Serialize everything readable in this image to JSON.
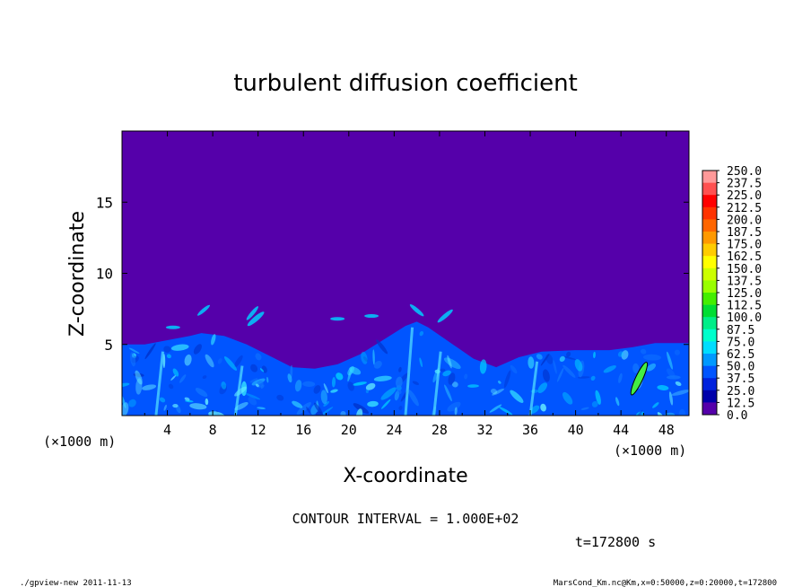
{
  "chart_data": {
    "type": "heatmap",
    "title": "turbulent diffusion coefficient",
    "xlabel": "X-coordinate",
    "ylabel": "Z-coordinate",
    "x_unit": "(×1000 m)",
    "z_unit": "(×1000 m)",
    "xlim": [
      0,
      50
    ],
    "ylim": [
      0,
      20
    ],
    "x_ticks": [
      "4",
      "8",
      "12",
      "16",
      "20",
      "24",
      "28",
      "32",
      "36",
      "40",
      "44",
      "48"
    ],
    "y_ticks": [
      "5",
      "10",
      "15"
    ],
    "colorbar": {
      "levels": [
        "250.0",
        "237.5",
        "225.0",
        "212.5",
        "200.0",
        "187.5",
        "175.0",
        "162.5",
        "150.0",
        "137.5",
        "125.0",
        "112.5",
        "100.0",
        "87.5",
        "75.0",
        "62.5",
        "50.0",
        "37.5",
        "25.0",
        "12.5",
        "0.0"
      ],
      "colors": [
        "#ff9999",
        "#ff5050",
        "#ff0000",
        "#ff3300",
        "#ff6600",
        "#ff9900",
        "#ffcc00",
        "#ffff00",
        "#ccff00",
        "#99ff00",
        "#44ee00",
        "#00dd33",
        "#00ee88",
        "#00ffcc",
        "#00ddff",
        "#0099ff",
        "#0055ff",
        "#0022dd",
        "#0000aa",
        "#5500aa"
      ]
    },
    "contour_interval": "CONTOUR INTERVAL = 1.000E+02",
    "time": "t=172800 s",
    "boundary_layer_top_km": [
      [
        0,
        5.0
      ],
      [
        2,
        5.0
      ],
      [
        4,
        5.3
      ],
      [
        6,
        5.6
      ],
      [
        7,
        5.8
      ],
      [
        9,
        5.6
      ],
      [
        11,
        5.0
      ],
      [
        13,
        4.2
      ],
      [
        15,
        3.4
      ],
      [
        17,
        3.3
      ],
      [
        19,
        3.6
      ],
      [
        21,
        4.3
      ],
      [
        23,
        5.3
      ],
      [
        25,
        6.3
      ],
      [
        26,
        6.6
      ],
      [
        27,
        6.2
      ],
      [
        29,
        5.1
      ],
      [
        31,
        4.0
      ],
      [
        33,
        3.4
      ],
      [
        35,
        4.1
      ],
      [
        37,
        4.5
      ],
      [
        40,
        4.6
      ],
      [
        43,
        4.6
      ],
      [
        45,
        4.8
      ],
      [
        47,
        5.1
      ],
      [
        50,
        5.1
      ]
    ],
    "background_color": "#5500aa",
    "turbulent_color": "#0055ff"
  },
  "footer": {
    "left": "./gpview-new   2011-11-13",
    "right": "MarsCond_Km.nc@Km,x=0:50000,z=0:20000,t=172800"
  }
}
